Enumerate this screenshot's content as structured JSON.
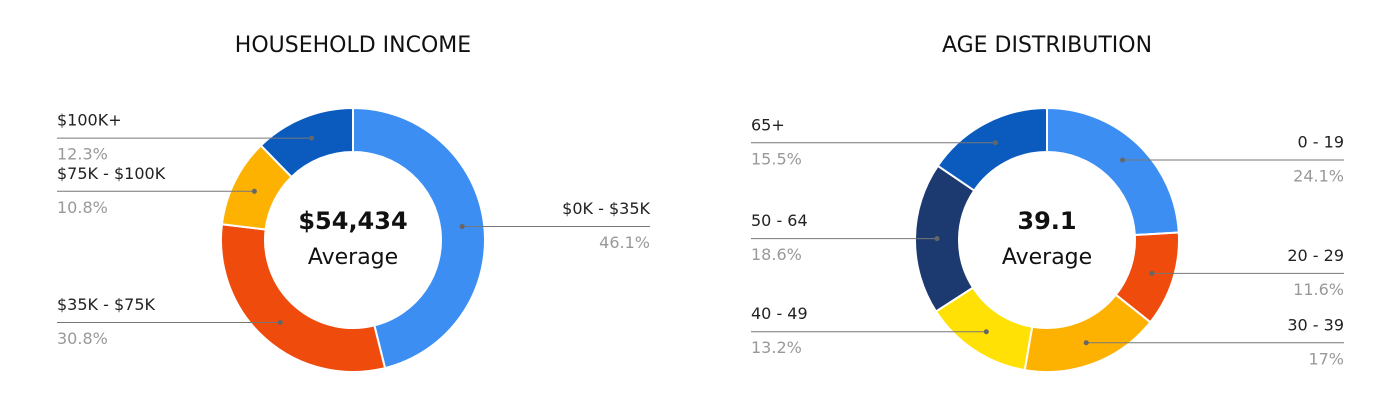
{
  "chart_data": [
    {
      "type": "pie",
      "title": "HOUSEHOLD INCOME",
      "center_text": "$54,434",
      "center_label": "Average",
      "categories": [
        "$0K - $35K",
        "$35K - $75K",
        "$75K - $100K",
        "$100K+"
      ],
      "values": [
        46.1,
        30.8,
        10.8,
        12.3
      ],
      "value_labels": [
        "46.1%",
        "30.8%",
        "10.8%",
        "12.3%"
      ],
      "colors": [
        "#3d8ef2",
        "#ee4b0c",
        "#fdb202",
        "#0b5bbf"
      ]
    },
    {
      "type": "pie",
      "title": "AGE DISTRIBUTION",
      "center_text": "39.1",
      "center_label": "Average",
      "categories": [
        "0 - 19",
        "20 - 29",
        "30 - 39",
        "40 - 49",
        "50 - 64",
        "65+"
      ],
      "values": [
        24.1,
        11.6,
        17,
        13.2,
        18.6,
        15.5
      ],
      "value_labels": [
        "24.1%",
        "11.6%",
        "17%",
        "13.2%",
        "18.6%",
        "15.5%"
      ],
      "colors": [
        "#3d8ef2",
        "#ee4b0c",
        "#fdb202",
        "#ffe105",
        "#1d3a70",
        "#0b5bbf"
      ]
    }
  ]
}
